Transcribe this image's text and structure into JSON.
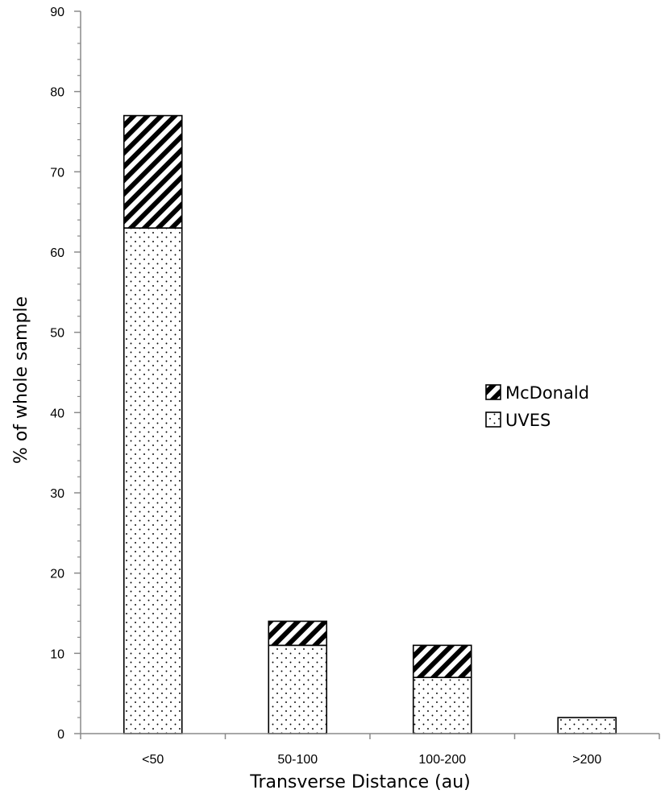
{
  "chart_data": {
    "type": "bar",
    "stacked": true,
    "categories": [
      "<50",
      "50-100",
      "100-200",
      ">200"
    ],
    "series": [
      {
        "name": "UVES",
        "values": [
          63,
          11,
          7,
          2
        ],
        "pattern": "dotted"
      },
      {
        "name": "McDonald",
        "values": [
          14,
          3,
          4,
          0
        ],
        "pattern": "diagonal-hatch"
      }
    ],
    "title": "",
    "xlabel": "Transverse Distance (au)",
    "ylabel": "% of whole sample",
    "ylim": [
      0,
      90
    ],
    "yticks": [
      "0",
      "10",
      "20",
      "30",
      "40",
      "50",
      "60",
      "70",
      "80",
      "90"
    ],
    "grid": false,
    "legend_position": "right-middle",
    "legend_order": [
      "McDonald",
      "UVES"
    ]
  }
}
